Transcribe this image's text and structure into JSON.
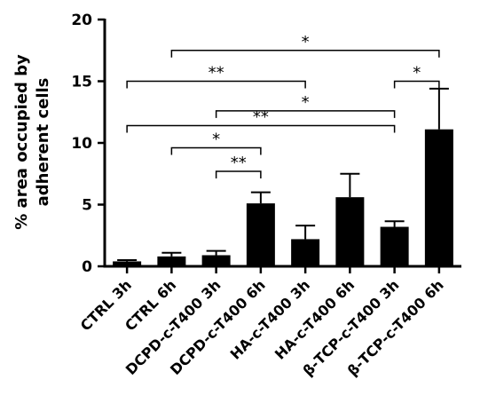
{
  "chart_data": {
    "type": "bar",
    "title": "",
    "xlabel": "",
    "ylabel": "% area occupied by adherent cells",
    "ylabel_lines": [
      "% area occupied by",
      "adherent cells"
    ],
    "ylim": [
      0,
      20
    ],
    "yticks": [
      0,
      5,
      10,
      15,
      20
    ],
    "ytick_labels": [
      "0",
      "5",
      "10",
      "15",
      "20"
    ],
    "grid": false,
    "categories": [
      "CTRL 3h",
      "CTRL 6h",
      "DCPD-c-T400 3h",
      "DCPD-c-T400 6h",
      "HA-c-T400 3h",
      "HA-c-T400 6h",
      "β-TCP-c-T400 3h",
      "β-TCP-c-T400 6h"
    ],
    "values": [
      0.4,
      0.8,
      0.9,
      5.1,
      2.2,
      5.6,
      3.2,
      11.1
    ],
    "errors": [
      0.1,
      0.3,
      0.35,
      0.9,
      1.1,
      1.9,
      0.45,
      3.3
    ],
    "bar_color": "#000000",
    "significance": [
      {
        "from": 1,
        "to": 7,
        "label": "*",
        "y": 17.5
      },
      {
        "from": 0,
        "to": 4,
        "label": "**",
        "y": 15.0
      },
      {
        "from": 6,
        "to": 7,
        "label": "*",
        "y": 15.0
      },
      {
        "from": 2,
        "to": 6,
        "label": "*",
        "y": 12.6
      },
      {
        "from": 0,
        "to": 6,
        "label": "**",
        "y": 11.4
      },
      {
        "from": 1,
        "to": 3,
        "label": "*",
        "y": 9.6
      },
      {
        "from": 2,
        "to": 3,
        "label": "**",
        "y": 7.7
      }
    ]
  }
}
